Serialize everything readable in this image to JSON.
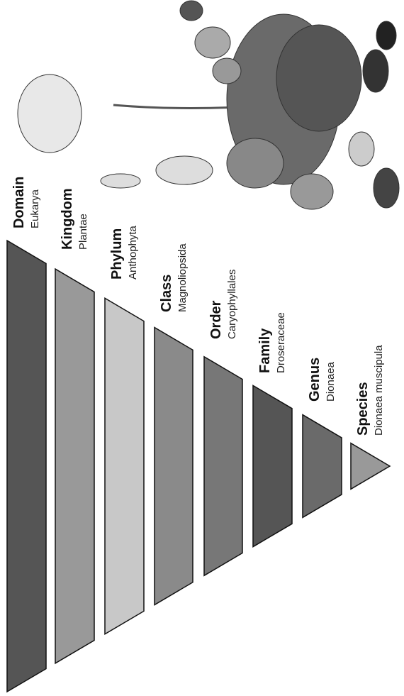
{
  "levels": [
    {
      "rank": "Domain",
      "name": "Eukarya"
    },
    {
      "rank": "Kingdom",
      "name": "Plantae"
    },
    {
      "rank": "Phylum",
      "name": "Anthophyta"
    },
    {
      "rank": "Class",
      "name": "Magnoliopsida"
    },
    {
      "rank": "Order",
      "name": "Caryophyllales"
    },
    {
      "rank": "Family",
      "name": "Droseraceae"
    },
    {
      "rank": "Genus",
      "name": "Dionaea"
    },
    {
      "rank": "Species",
      "name": "Dionaea muscipula"
    }
  ]
}
